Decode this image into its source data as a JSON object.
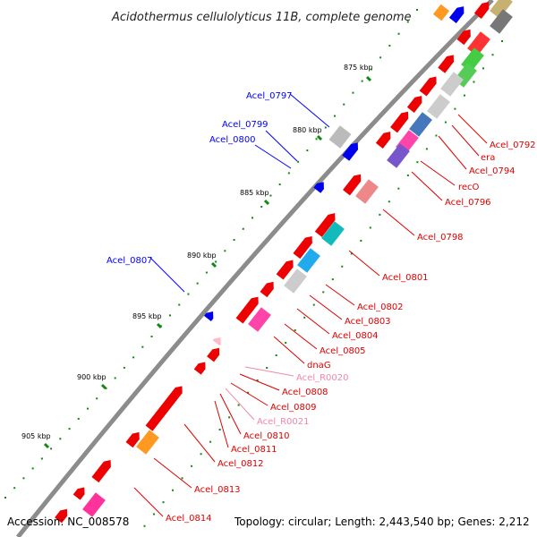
{
  "title": "Acidothermus cellulolyticus 11B, complete genome",
  "footer": {
    "accession": "Accession: NC_008578",
    "summary": "Topology: circular; Length: 2,443,540 bp; Genes: 2,212"
  },
  "colors": {
    "backbone": "#8c8c8c",
    "forward_label": "#0000ff",
    "reverse_label": "#dd0000",
    "rna_label": "#ee88aa",
    "tick": "#118811"
  },
  "scale_ticks": [
    {
      "label": "875 kbp"
    },
    {
      "label": "880 kbp"
    },
    {
      "label": "885 kbp"
    },
    {
      "label": "890 kbp"
    },
    {
      "label": "895 kbp"
    },
    {
      "label": "900 kbp"
    },
    {
      "label": "905 kbp"
    }
  ],
  "forward_genes": [
    {
      "label": "Acel_0797"
    },
    {
      "label": "Acel_0799"
    },
    {
      "label": "Acel_0800"
    },
    {
      "label": "Acel_0807"
    }
  ],
  "reverse_genes": [
    {
      "label": "Acel_0792"
    },
    {
      "label": "era"
    },
    {
      "label": "Acel_0794"
    },
    {
      "label": "recO"
    },
    {
      "label": "Acel_0796"
    },
    {
      "label": "Acel_0798"
    },
    {
      "label": "Acel_0801"
    },
    {
      "label": "Acel_0802"
    },
    {
      "label": "Acel_0803"
    },
    {
      "label": "Acel_0804"
    },
    {
      "label": "Acel_0805"
    },
    {
      "label": "dnaG"
    },
    {
      "label": "Acel_R0020",
      "rna": true
    },
    {
      "label": "Acel_0808"
    },
    {
      "label": "Acel_0809"
    },
    {
      "label": "Acel_R0021",
      "rna": true
    },
    {
      "label": "Acel_0810"
    },
    {
      "label": "Acel_0811"
    },
    {
      "label": "Acel_0812"
    },
    {
      "label": "Acel_0813"
    },
    {
      "label": "Acel_0814"
    }
  ]
}
